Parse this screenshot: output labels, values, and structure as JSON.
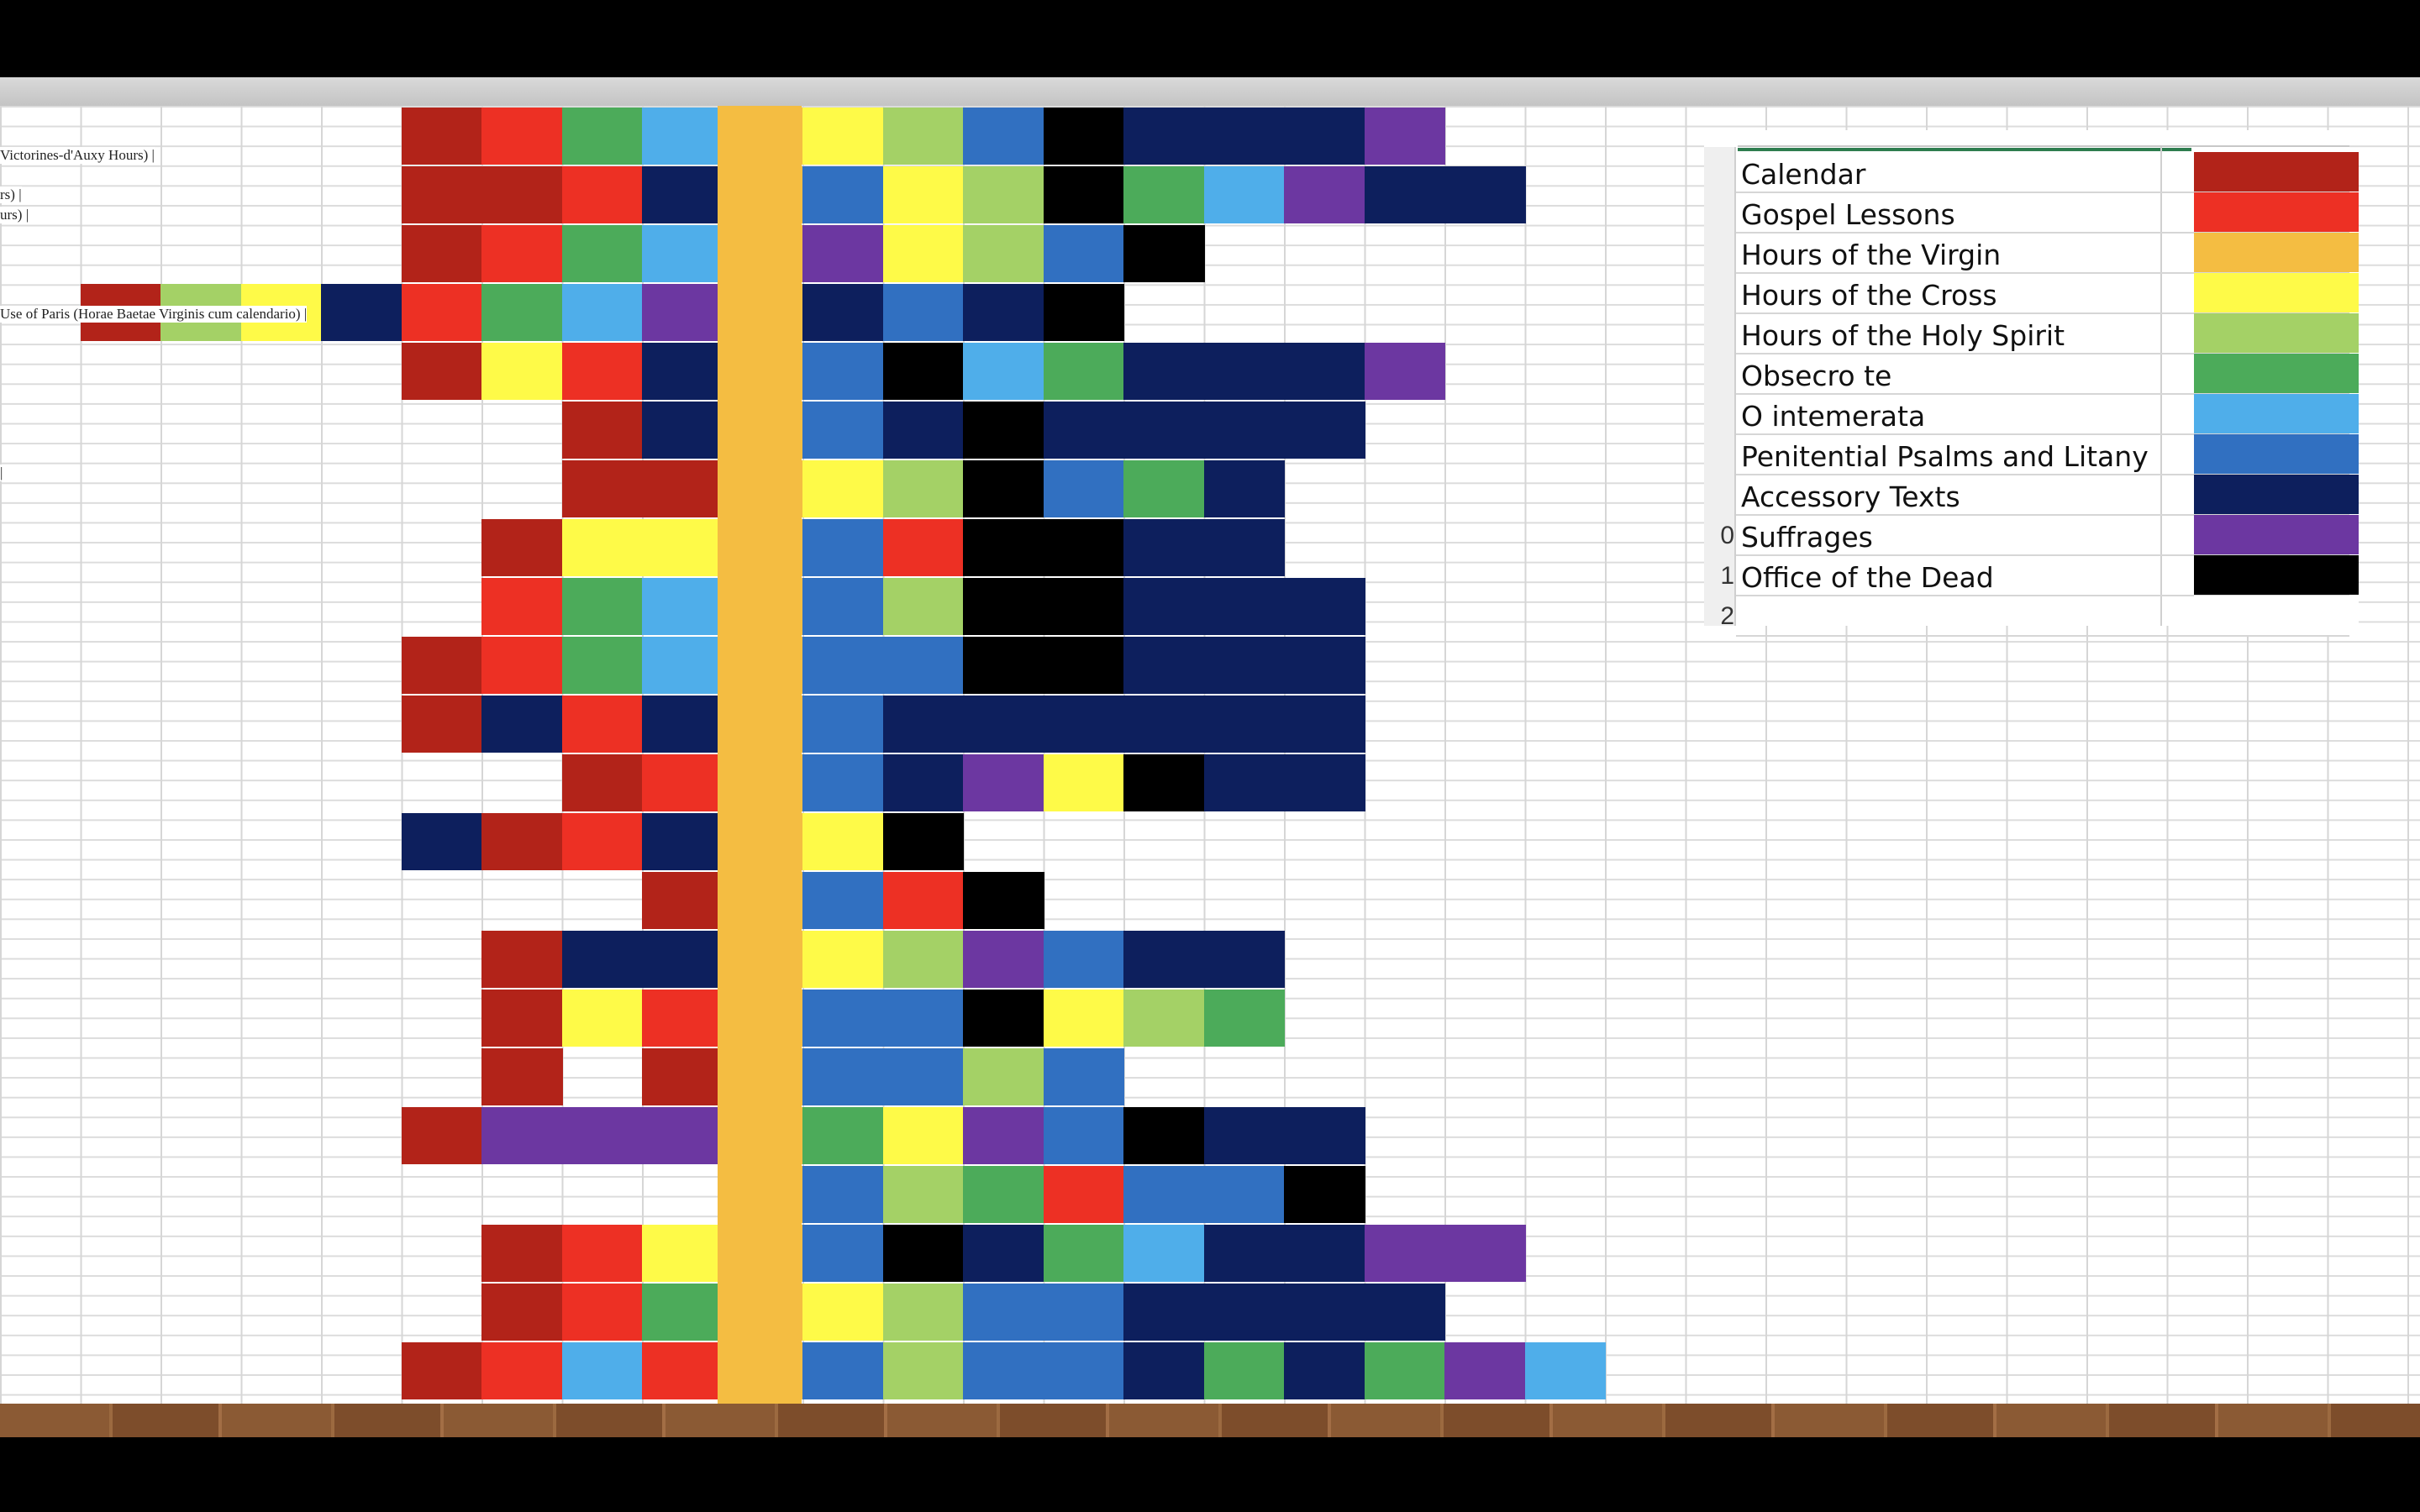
{
  "legend": {
    "rows": [
      {
        "num": "",
        "label": "Calendar",
        "color": "#b22319"
      },
      {
        "num": "",
        "label": "Gospel Lessons",
        "color": "#ed3024"
      },
      {
        "num": "",
        "label": "Hours of the Virgin",
        "color": "#f4bd42"
      },
      {
        "num": "",
        "label": "Hours of the Cross",
        "color": "#fefa48"
      },
      {
        "num": "",
        "label": "Hours of the Holy Spirit",
        "color": "#a4d166"
      },
      {
        "num": "",
        "label": "Obsecro te",
        "color": "#4cab5a"
      },
      {
        "num": "",
        "label": "O intemerata",
        "color": "#4faeea"
      },
      {
        "num": "",
        "label": "Penitential Psalms and Litany",
        "color": "#3170c1"
      },
      {
        "num": "",
        "label": "Accessory Texts",
        "color": "#0d1f5d"
      },
      {
        "num": "0",
        "label": "Suffrages",
        "color": "#6c37a1"
      },
      {
        "num": "1",
        "label": "Office of the Dead",
        "color": "#000000"
      },
      {
        "num": "2",
        "label": "",
        "color": "#ffffff"
      }
    ]
  },
  "row_labels": [
    {
      "row": 2,
      "text": "Victorines-d'Auxy Hours) |"
    },
    {
      "row": 4,
      "text": "rs) |"
    },
    {
      "row": 5,
      "text": "urs) |"
    },
    {
      "row": 10,
      "text": "Use of Paris (Horae Baetae Virginis cum calendario) |"
    },
    {
      "row": 18,
      "text": "|"
    }
  ],
  "grid": {
    "rows": [
      [
        "",
        "",
        "",
        "",
        "",
        "cal",
        "gos",
        "obs",
        "oin",
        "hv",
        "hc",
        "hs",
        "ppl",
        "od",
        "acc",
        "acc",
        "acc",
        "suf"
      ],
      [
        "",
        "",
        "",
        "",
        "",
        "cal",
        "cal",
        "gos",
        "acc",
        "hv",
        "ppl",
        "hc",
        "hs",
        "od",
        "obs",
        "oin",
        "suf",
        "acc",
        "acc"
      ],
      [
        "",
        "",
        "",
        "",
        "",
        "cal",
        "gos",
        "obs",
        "oin",
        "hv",
        "suf",
        "hc",
        "hs",
        "ppl",
        "od"
      ],
      [
        "",
        "cal",
        "hs",
        "hc",
        "acc",
        "gos",
        "obs",
        "oin",
        "suf",
        "hv",
        "acc",
        "ppl",
        "acc",
        "od"
      ],
      [
        "",
        "",
        "",
        "",
        "",
        "cal",
        "hc",
        "gos",
        "acc",
        "hv",
        "ppl",
        "od",
        "oin",
        "obs",
        "acc",
        "acc",
        "acc",
        "suf"
      ],
      [
        "",
        "",
        "",
        "",
        "",
        "",
        "",
        "cal",
        "acc",
        "hv",
        "ppl",
        "acc",
        "od",
        "acc",
        "acc",
        "acc",
        "acc"
      ],
      [
        "",
        "",
        "",
        "",
        "",
        "",
        "",
        "cal",
        "cal",
        "hv",
        "hc",
        "hs",
        "od",
        "ppl",
        "obs",
        "acc"
      ],
      [
        "",
        "",
        "",
        "",
        "",
        "",
        "cal",
        "hc",
        "hc",
        "hv",
        "ppl",
        "gos",
        "od",
        "od",
        "acc",
        "acc"
      ],
      [
        "",
        "",
        "",
        "",
        "",
        "",
        "gos",
        "obs",
        "oin",
        "hv",
        "ppl",
        "hs",
        "od",
        "od",
        "acc",
        "acc",
        "acc"
      ],
      [
        "",
        "",
        "",
        "",
        "",
        "cal",
        "gos",
        "obs",
        "oin",
        "hv",
        "ppl",
        "ppl",
        "od",
        "od",
        "acc",
        "acc",
        "acc"
      ],
      [
        "",
        "",
        "",
        "",
        "",
        "cal",
        "acc",
        "gos",
        "acc",
        "hv",
        "ppl",
        "acc",
        "acc",
        "acc",
        "acc",
        "acc",
        "acc"
      ],
      [
        "",
        "",
        "",
        "",
        "",
        "",
        "",
        "cal",
        "gos",
        "hv",
        "ppl",
        "acc",
        "suf",
        "hc",
        "od",
        "acc",
        "acc"
      ],
      [
        "",
        "",
        "",
        "",
        "",
        "acc",
        "cal",
        "gos",
        "acc",
        "hv",
        "hc",
        "od",
        "",
        "",
        "",
        "",
        ""
      ],
      [
        "",
        "",
        "",
        "",
        "",
        "",
        "",
        "",
        "cal",
        "hv",
        "ppl",
        "gos",
        "od",
        "",
        "",
        "",
        ""
      ],
      [
        "",
        "",
        "",
        "",
        "",
        "",
        "cal",
        "acc",
        "acc",
        "hv",
        "hc",
        "hs",
        "suf",
        "ppl",
        "acc",
        "acc"
      ],
      [
        "",
        "",
        "",
        "",
        "",
        "",
        "cal",
        "hc",
        "gos",
        "hv",
        "ppl",
        "ppl",
        "od",
        "hc",
        "hs",
        "obs"
      ],
      [
        "",
        "",
        "",
        "",
        "",
        "",
        "cal",
        "",
        "cal",
        "hv",
        "ppl",
        "ppl",
        "hs",
        "ppl",
        "",
        ""
      ],
      [
        "",
        "",
        "",
        "",
        "",
        "cal",
        "suf",
        "suf",
        "suf",
        "hv",
        "obs",
        "hc",
        "suf",
        "ppl",
        "od",
        "acc",
        "acc"
      ],
      [
        "",
        "",
        "",
        "",
        "",
        "",
        "",
        "",
        "",
        "hv",
        "ppl",
        "hs",
        "obs",
        "gos",
        "ppl",
        "ppl",
        "od"
      ],
      [
        "",
        "",
        "",
        "",
        "",
        "",
        "cal",
        "gos",
        "hc",
        "hv",
        "ppl",
        "od",
        "acc",
        "obs",
        "oin",
        "acc",
        "acc",
        "suf",
        "suf"
      ],
      [
        "",
        "",
        "",
        "",
        "",
        "",
        "cal",
        "gos",
        "obs",
        "hv",
        "hc",
        "hs",
        "ppl",
        "ppl",
        "acc",
        "acc",
        "acc",
        "acc"
      ],
      [
        "",
        "",
        "",
        "",
        "",
        "cal",
        "gos",
        "oin",
        "gos",
        "hv",
        "ppl",
        "hs",
        "ppl",
        "ppl",
        "acc",
        "obs",
        "acc",
        "obs",
        "suf",
        "oin"
      ]
    ]
  }
}
